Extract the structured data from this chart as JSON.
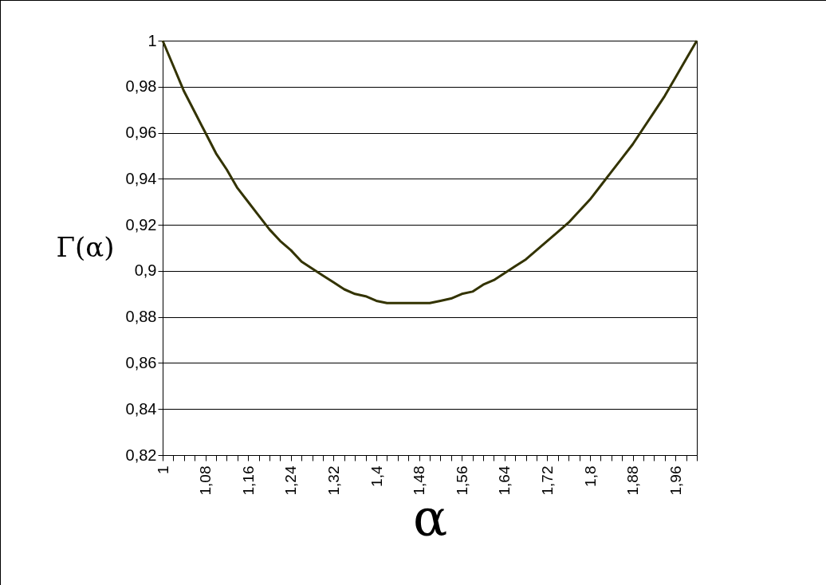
{
  "chart_data": {
    "type": "line",
    "xlabel": "α",
    "ylabel": "Γ(α)",
    "categories": [
      "1",
      null,
      null,
      null,
      "1,08",
      null,
      null,
      null,
      "1,16",
      null,
      null,
      null,
      "1,24",
      null,
      null,
      null,
      "1,32",
      null,
      null,
      null,
      "1,4",
      null,
      null,
      null,
      "1,48",
      null,
      null,
      null,
      "1,56",
      null,
      null,
      null,
      "1,64",
      null,
      null,
      null,
      "1,72",
      null,
      null,
      null,
      "1,8",
      null,
      null,
      null,
      "1,88",
      null,
      null,
      null,
      "1,96",
      null,
      null
    ],
    "series": [
      {
        "color": "#333300",
        "values": [
          1.0,
          0.989,
          0.978,
          0.969,
          0.96,
          0.951,
          0.944,
          0.936,
          0.93,
          0.924,
          0.918,
          0.913,
          0.909,
          0.904,
          0.901,
          0.898,
          0.895,
          0.892,
          0.89,
          0.889,
          0.887,
          0.886,
          0.886,
          0.886,
          0.886,
          0.886,
          0.887,
          0.888,
          0.89,
          0.891,
          0.894,
          0.896,
          0.899,
          0.902,
          0.905,
          0.909,
          0.913,
          0.917,
          0.921,
          0.926,
          0.931,
          0.937,
          0.943,
          0.949,
          0.955,
          0.962,
          0.969,
          0.976,
          0.984,
          0.992,
          1.0
        ]
      }
    ],
    "ylim": [
      0.82,
      1
    ],
    "yticks": [
      {
        "value": 0.82,
        "label": "0,82"
      },
      {
        "value": 0.84,
        "label": "0,84"
      },
      {
        "value": 0.86,
        "label": "0,86"
      },
      {
        "value": 0.88,
        "label": "0,88"
      },
      {
        "value": 0.9,
        "label": "0,9"
      },
      {
        "value": 0.92,
        "label": "0,92"
      },
      {
        "value": 0.94,
        "label": "0,94"
      },
      {
        "value": 0.96,
        "label": "0,96"
      },
      {
        "value": 0.98,
        "label": "0,98"
      },
      {
        "value": 1,
        "label": "1"
      }
    ],
    "grid": "y",
    "marker": "none",
    "line_style": "solid"
  }
}
